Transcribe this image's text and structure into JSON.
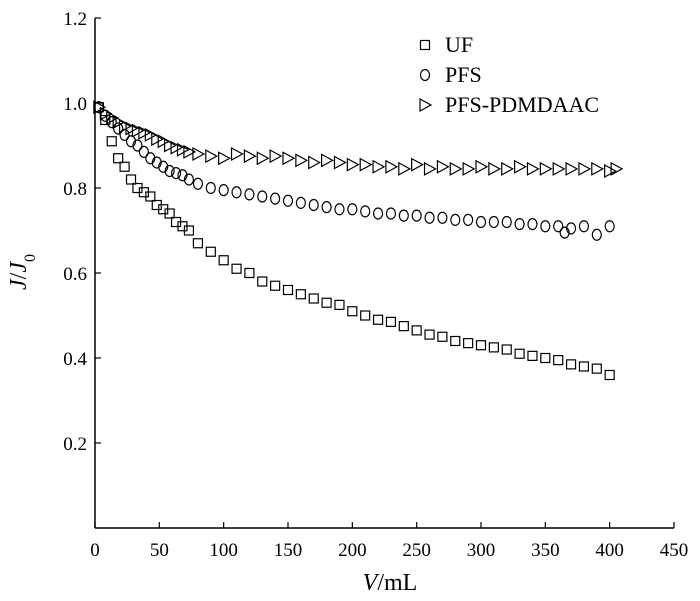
{
  "chart_data": {
    "type": "scatter",
    "xlabel": "V/mL",
    "ylabel": "J/J0",
    "xlim": [
      0,
      450
    ],
    "ylim": [
      0,
      1.2
    ],
    "x_ticks": [
      0,
      50,
      100,
      150,
      200,
      250,
      300,
      350,
      400,
      450
    ],
    "y_ticks": [
      0.2,
      0.4,
      0.6,
      0.8,
      1.0,
      1.2
    ],
    "legend_position": "top-right",
    "series": [
      {
        "name": "UF",
        "marker": "square",
        "x": [
          3,
          8,
          13,
          18,
          23,
          28,
          33,
          38,
          43,
          48,
          53,
          58,
          63,
          68,
          73,
          80,
          90,
          100,
          110,
          120,
          130,
          140,
          150,
          160,
          170,
          180,
          190,
          200,
          210,
          220,
          230,
          240,
          250,
          260,
          270,
          280,
          290,
          300,
          310,
          320,
          330,
          340,
          350,
          360,
          370,
          380,
          390,
          400
        ],
        "y": [
          0.99,
          0.96,
          0.91,
          0.87,
          0.85,
          0.82,
          0.8,
          0.79,
          0.78,
          0.76,
          0.75,
          0.74,
          0.72,
          0.71,
          0.7,
          0.67,
          0.65,
          0.63,
          0.61,
          0.6,
          0.58,
          0.57,
          0.56,
          0.55,
          0.54,
          0.53,
          0.525,
          0.51,
          0.5,
          0.49,
          0.485,
          0.475,
          0.465,
          0.455,
          0.45,
          0.44,
          0.435,
          0.43,
          0.425,
          0.42,
          0.41,
          0.405,
          0.4,
          0.395,
          0.385,
          0.38,
          0.375,
          0.36
        ]
      },
      {
        "name": "PFS",
        "marker": "circle",
        "x": [
          3,
          8,
          13,
          18,
          23,
          28,
          33,
          38,
          43,
          48,
          53,
          58,
          63,
          68,
          73,
          80,
          90,
          100,
          110,
          120,
          130,
          140,
          150,
          160,
          170,
          180,
          190,
          200,
          210,
          220,
          230,
          240,
          250,
          260,
          270,
          280,
          290,
          300,
          310,
          320,
          330,
          340,
          350,
          360,
          365,
          370,
          380,
          390,
          400
        ],
        "y": [
          0.99,
          0.97,
          0.955,
          0.94,
          0.925,
          0.91,
          0.9,
          0.885,
          0.87,
          0.86,
          0.85,
          0.84,
          0.835,
          0.83,
          0.82,
          0.81,
          0.8,
          0.795,
          0.79,
          0.785,
          0.78,
          0.775,
          0.77,
          0.765,
          0.76,
          0.755,
          0.75,
          0.75,
          0.745,
          0.74,
          0.74,
          0.735,
          0.735,
          0.73,
          0.73,
          0.725,
          0.725,
          0.72,
          0.72,
          0.72,
          0.715,
          0.715,
          0.71,
          0.71,
          0.695,
          0.705,
          0.71,
          0.69,
          0.71
        ]
      },
      {
        "name": "PFS-PDMDAAC",
        "marker": "triangle-right",
        "x": [
          3,
          8,
          13,
          18,
          23,
          28,
          33,
          38,
          43,
          48,
          53,
          58,
          63,
          68,
          73,
          80,
          90,
          100,
          110,
          120,
          130,
          140,
          150,
          160,
          170,
          180,
          190,
          200,
          210,
          220,
          230,
          240,
          250,
          260,
          270,
          280,
          290,
          300,
          310,
          320,
          330,
          340,
          350,
          360,
          370,
          380,
          390,
          400,
          405
        ],
        "y": [
          0.99,
          0.975,
          0.965,
          0.955,
          0.945,
          0.94,
          0.935,
          0.93,
          0.925,
          0.915,
          0.91,
          0.9,
          0.895,
          0.89,
          0.885,
          0.88,
          0.875,
          0.87,
          0.88,
          0.875,
          0.87,
          0.875,
          0.87,
          0.865,
          0.86,
          0.865,
          0.86,
          0.855,
          0.855,
          0.85,
          0.85,
          0.845,
          0.855,
          0.845,
          0.85,
          0.845,
          0.845,
          0.85,
          0.845,
          0.845,
          0.85,
          0.845,
          0.845,
          0.845,
          0.845,
          0.845,
          0.845,
          0.84,
          0.845
        ]
      }
    ]
  }
}
